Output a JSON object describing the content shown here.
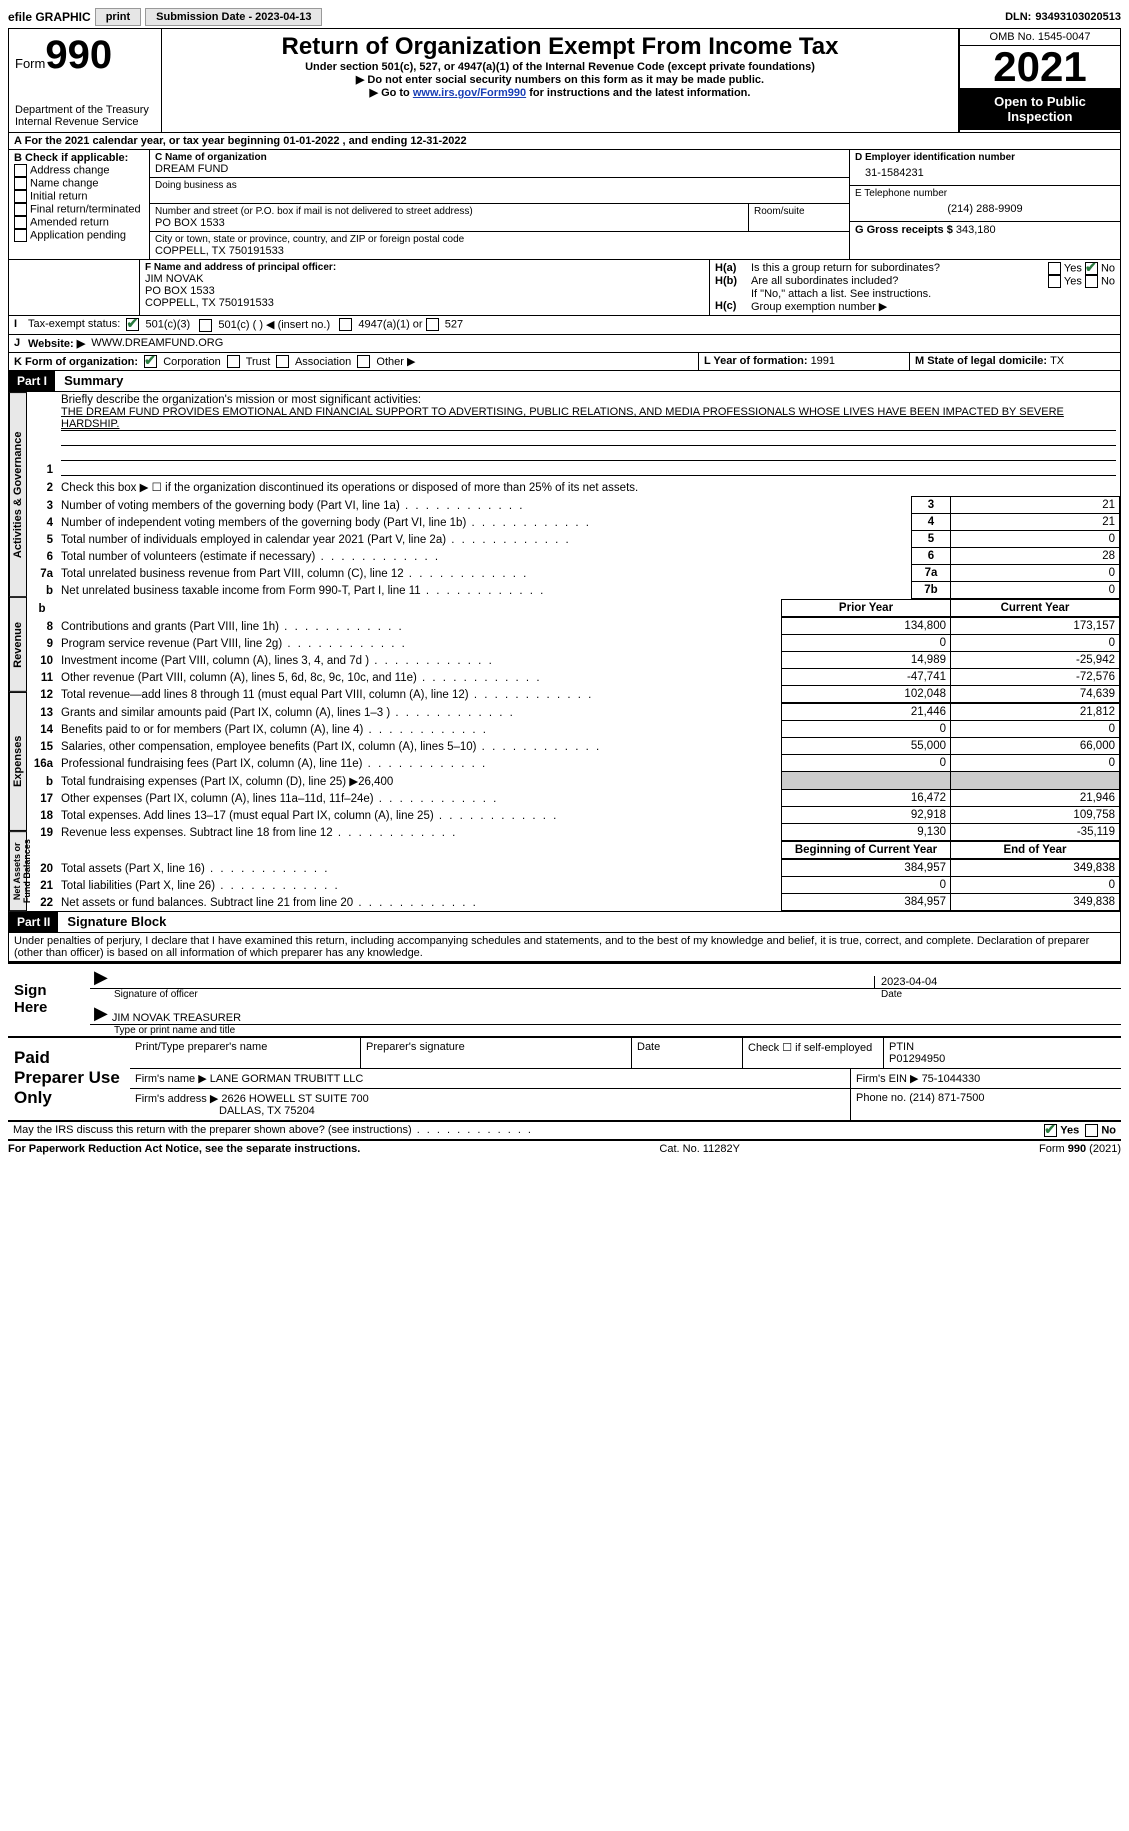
{
  "topbar": {
    "efile": "efile GRAPHIC",
    "print": "print",
    "submission_label": "Submission Date - ",
    "submission_date": "2023-04-13",
    "dln_label": "DLN: ",
    "dln": "93493103020513"
  },
  "header": {
    "form_word": "Form",
    "form_number": "990",
    "dept": "Department of the Treasury",
    "irs": "Internal Revenue Service",
    "title": "Return of Organization Exempt From Income Tax",
    "subtitle": "Under section 501(c), 527, or 4947(a)(1) of the Internal Revenue Code (except private foundations)",
    "note1": "▶ Do not enter social security numbers on this form as it may be made public.",
    "note2_pre": "▶ Go to ",
    "note2_link": "www.irs.gov/Form990",
    "note2_post": " for instructions and the latest information.",
    "omb": "OMB No. 1545-0047",
    "year": "2021",
    "inspect": "Open to Public Inspection"
  },
  "periodA": {
    "text_pre": "For the 2021 calendar year, or tax year beginning ",
    "begin": "01-01-2022",
    "mid": " , and ending ",
    "end": "12-31-2022"
  },
  "sectionB": {
    "label": "B Check if applicable:",
    "items": [
      "Address change",
      "Name change",
      "Initial return",
      "Final return/terminated",
      "Amended return",
      "Application pending"
    ]
  },
  "sectionC": {
    "name_label": "C Name of organization",
    "name": "DREAM FUND",
    "dba_label": "Doing business as",
    "street_label": "Number and street (or P.O. box if mail is not delivered to street address)",
    "room_label": "Room/suite",
    "street": "PO BOX 1533",
    "city_label": "City or town, state or province, country, and ZIP or foreign postal code",
    "city": "COPPELL, TX  750191533"
  },
  "sectionD": {
    "label": "D Employer identification number",
    "value": "31-1584231"
  },
  "sectionE": {
    "label": "E Telephone number",
    "value": "(214) 288-9909"
  },
  "sectionG": {
    "label": "G Gross receipts $ ",
    "value": "343,180"
  },
  "sectionF": {
    "label": "F Name and address of principal officer:",
    "name": "JIM NOVAK",
    "street": "PO BOX 1533",
    "city": "COPPELL, TX  750191533"
  },
  "sectionH": {
    "a": "Is this a group return for subordinates?",
    "b": "Are all subordinates included?",
    "b_note": "If \"No,\" attach a list. See instructions.",
    "c": "Group exemption number ▶",
    "ha_label": "H(a)",
    "hb_label": "H(b)",
    "hc_label": "H(c)",
    "yes": "Yes",
    "no": "No"
  },
  "sectionI": {
    "label": "Tax-exempt status:",
    "opt1": "501(c)(3)",
    "opt2": "501(c) (  ) ◀ (insert no.)",
    "opt3": "4947(a)(1) or",
    "opt4": "527"
  },
  "sectionJ": {
    "label": "Website: ▶",
    "value": "WWW.DREAMFUND.ORG"
  },
  "sectionK": {
    "label": "K Form of organization:",
    "corp": "Corporation",
    "trust": "Trust",
    "assoc": "Association",
    "other": "Other ▶"
  },
  "sectionL": {
    "label": "L Year of formation: ",
    "value": "1991"
  },
  "sectionM": {
    "label": "M State of legal domicile: ",
    "value": "TX"
  },
  "part1": {
    "header": "Part I",
    "title": "Summary",
    "line1_label": "Briefly describe the organization's mission or most significant activities:",
    "mission": "THE DREAM FUND PROVIDES EMOTIONAL AND FINANCIAL SUPPORT TO ADVERTISING, PUBLIC RELATIONS, AND MEDIA PROFESSIONALS WHOSE LIVES HAVE BEEN IMPACTED BY SEVERE HARDSHIP.",
    "line2": "Check this box ▶ ☐ if the organization discontinued its operations or disposed of more than 25% of its net assets.",
    "tabs": {
      "activities": "Activities & Governance",
      "revenue": "Revenue",
      "expenses": "Expenses",
      "netassets": "Net Assets or Fund Balances"
    },
    "col_prior": "Prior Year",
    "col_current": "Current Year",
    "col_begin": "Beginning of Current Year",
    "col_end": "End of Year",
    "lines_gov": [
      {
        "n": "3",
        "t": "Number of voting members of the governing body (Part VI, line 1a)",
        "box": "3",
        "v": "21"
      },
      {
        "n": "4",
        "t": "Number of independent voting members of the governing body (Part VI, line 1b)",
        "box": "4",
        "v": "21"
      },
      {
        "n": "5",
        "t": "Total number of individuals employed in calendar year 2021 (Part V, line 2a)",
        "box": "5",
        "v": "0"
      },
      {
        "n": "6",
        "t": "Total number of volunteers (estimate if necessary)",
        "box": "6",
        "v": "28"
      },
      {
        "n": "7a",
        "t": "Total unrelated business revenue from Part VIII, column (C), line 12",
        "box": "7a",
        "v": "0"
      },
      {
        "n": "b",
        "t": "Net unrelated business taxable income from Form 990-T, Part I, line 11",
        "box": "7b",
        "v": "0"
      }
    ],
    "lines_rev": [
      {
        "n": "8",
        "t": "Contributions and grants (Part VIII, line 1h)",
        "p": "134,800",
        "c": "173,157"
      },
      {
        "n": "9",
        "t": "Program service revenue (Part VIII, line 2g)",
        "p": "0",
        "c": "0"
      },
      {
        "n": "10",
        "t": "Investment income (Part VIII, column (A), lines 3, 4, and 7d )",
        "p": "14,989",
        "c": "-25,942"
      },
      {
        "n": "11",
        "t": "Other revenue (Part VIII, column (A), lines 5, 6d, 8c, 9c, 10c, and 11e)",
        "p": "-47,741",
        "c": "-72,576"
      },
      {
        "n": "12",
        "t": "Total revenue—add lines 8 through 11 (must equal Part VIII, column (A), line 12)",
        "p": "102,048",
        "c": "74,639"
      }
    ],
    "lines_exp": [
      {
        "n": "13",
        "t": "Grants and similar amounts paid (Part IX, column (A), lines 1–3 )",
        "p": "21,446",
        "c": "21,812"
      },
      {
        "n": "14",
        "t": "Benefits paid to or for members (Part IX, column (A), line 4)",
        "p": "0",
        "c": "0"
      },
      {
        "n": "15",
        "t": "Salaries, other compensation, employee benefits (Part IX, column (A), lines 5–10)",
        "p": "55,000",
        "c": "66,000"
      },
      {
        "n": "16a",
        "t": "Professional fundraising fees (Part IX, column (A), line 11e)",
        "p": "0",
        "c": "0"
      },
      {
        "n": "b",
        "t": "Total fundraising expenses (Part IX, column (D), line 25) ▶26,400",
        "shade": true
      },
      {
        "n": "17",
        "t": "Other expenses (Part IX, column (A), lines 11a–11d, 11f–24e)",
        "p": "16,472",
        "c": "21,946"
      },
      {
        "n": "18",
        "t": "Total expenses. Add lines 13–17 (must equal Part IX, column (A), line 25)",
        "p": "92,918",
        "c": "109,758"
      },
      {
        "n": "19",
        "t": "Revenue less expenses. Subtract line 18 from line 12",
        "p": "9,130",
        "c": "-35,119"
      }
    ],
    "lines_net": [
      {
        "n": "20",
        "t": "Total assets (Part X, line 16)",
        "p": "384,957",
        "c": "349,838"
      },
      {
        "n": "21",
        "t": "Total liabilities (Part X, line 26)",
        "p": "0",
        "c": "0"
      },
      {
        "n": "22",
        "t": "Net assets or fund balances. Subtract line 21 from line 20",
        "p": "384,957",
        "c": "349,838"
      }
    ]
  },
  "part2": {
    "header": "Part II",
    "title": "Signature Block",
    "penalty": "Under penalties of perjury, I declare that I have examined this return, including accompanying schedules and statements, and to the best of my knowledge and belief, it is true, correct, and complete. Declaration of preparer (other than officer) is based on all information of which preparer has any knowledge.",
    "sign_here": "Sign Here",
    "sig_officer": "Signature of officer",
    "sig_date_label": "Date",
    "sig_date": "2023-04-04",
    "officer_name": "JIM NOVAK  TREASURER",
    "type_name": "Type or print name and title"
  },
  "preparer": {
    "label": "Paid Preparer Use Only",
    "print_name": "Print/Type preparer's name",
    "signature": "Preparer's signature",
    "date": "Date",
    "check_self": "Check ☐ if self-employed",
    "ptin_label": "PTIN",
    "ptin": "P01294950",
    "firm_name_label": "Firm's name   ▶ ",
    "firm_name": "LANE GORMAN TRUBITT LLC",
    "firm_ein_label": "Firm's EIN ▶ ",
    "firm_ein": "75-1044330",
    "firm_addr_label": "Firm's address ▶ ",
    "firm_addr1": "2626 HOWELL ST SUITE 700",
    "firm_addr2": "DALLAS, TX  75204",
    "phone_label": "Phone no. ",
    "phone": "(214) 871-7500"
  },
  "footer": {
    "discuss": "May the IRS discuss this return with the preparer shown above? (see instructions)",
    "yes": "Yes",
    "no": "No",
    "paperwork": "For Paperwork Reduction Act Notice, see the separate instructions.",
    "cat": "Cat. No. 11282Y",
    "formref": "Form 990 (2021)"
  }
}
